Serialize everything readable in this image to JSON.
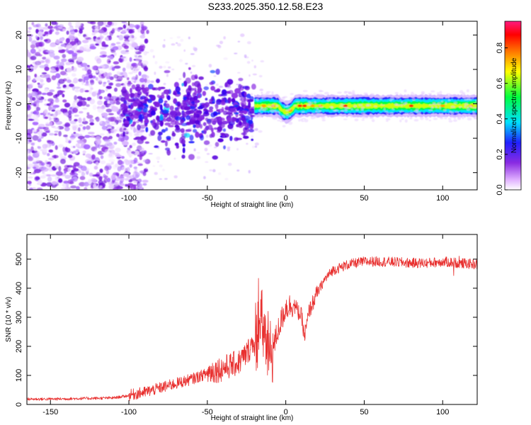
{
  "title": "S233.2025.350.12.58.E23",
  "chart_data": [
    {
      "type": "heatmap",
      "name": "spectrogram",
      "xlabel": "Height of straight line (km)",
      "ylabel": "Frequency (Hz)",
      "xlim": [
        -165,
        122
      ],
      "ylim": [
        -25,
        24
      ],
      "xticks": [
        -150,
        -100,
        -50,
        0,
        50,
        100
      ],
      "xtick_labels": [
        "-150",
        "-100",
        "-50",
        "0",
        "50",
        "100"
      ],
      "yticks": [
        -20,
        -10,
        0,
        10,
        20
      ],
      "ytick_labels": [
        "-20",
        "-10",
        "0",
        "10",
        "20"
      ],
      "colorbar": {
        "label": "Normalized spectral amplitude",
        "range": [
          0.0,
          0.95
        ],
        "ticks": [
          0.0,
          0.2,
          0.4,
          0.6,
          0.8
        ],
        "tick_labels": [
          "0.0",
          "0.2",
          "0.4",
          "0.6",
          "0.8"
        ],
        "colormap": "rainbow (white-violet-blue-cyan-green-yellow-red-magenta)"
      },
      "regions": [
        {
          "x_range": [
            -165,
            -100
          ],
          "description": "scattered noise, freq -25 to 24",
          "amplitude": 0.05
        },
        {
          "x_range": [
            -100,
            -20
          ],
          "description": "blob cluster, freq -10 to 7",
          "amplitude": 0.2
        },
        {
          "x_range": [
            -20,
            122
          ],
          "description": "narrow tone band near freq 0, width about +/-2",
          "amplitude": 0.85
        }
      ]
    },
    {
      "type": "line",
      "name": "snr",
      "xlabel": "Height of straight line (km)",
      "ylabel": "SNR (10 * v/v)",
      "xlim": [
        -165,
        122
      ],
      "ylim": [
        0,
        585
      ],
      "xticks": [
        -150,
        -100,
        -50,
        0,
        50,
        100
      ],
      "xtick_labels": [
        "-150",
        "-100",
        "-50",
        "0",
        "50",
        "100"
      ],
      "yticks": [
        0,
        100,
        200,
        300,
        400,
        500
      ],
      "ytick_labels": [
        "0",
        "100",
        "200",
        "300",
        "400",
        "500"
      ],
      "color": "#e8302f",
      "series": [
        {
          "name": "SNR",
          "x": [
            -165,
            -150,
            -130,
            -110,
            -100,
            -90,
            -80,
            -70,
            -60,
            -50,
            -40,
            -30,
            -25,
            -20,
            -15,
            -10,
            -5,
            0,
            5,
            10,
            12,
            15,
            20,
            25,
            30,
            40,
            50,
            60,
            70,
            80,
            90,
            100,
            110,
            122
          ],
          "values": [
            18,
            18,
            20,
            22,
            30,
            40,
            55,
            70,
            85,
            105,
            120,
            140,
            170,
            220,
            260,
            150,
            250,
            330,
            340,
            300,
            230,
            320,
            380,
            430,
            460,
            480,
            490,
            490,
            488,
            485,
            485,
            490,
            485,
            480
          ]
        }
      ]
    }
  ]
}
